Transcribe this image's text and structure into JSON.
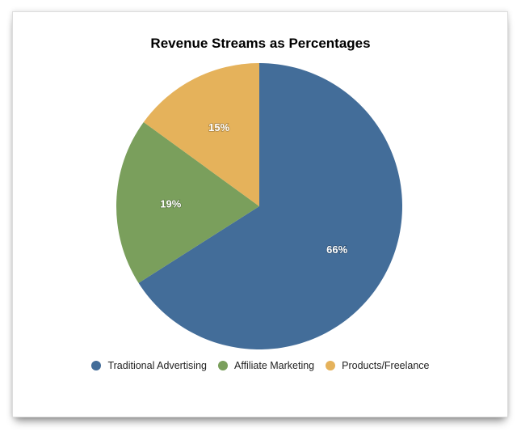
{
  "chart_data": {
    "type": "pie",
    "title": "Revenue Streams as Percentages",
    "categories": [
      "Traditional Advertising",
      "Affiliate Marketing",
      "Products/Freelance"
    ],
    "values": [
      66,
      19,
      15
    ],
    "labels": [
      "66%",
      "19%",
      "15%"
    ],
    "colors": [
      "#436d99",
      "#7a9f5c",
      "#e5b25b"
    ],
    "start": "top, clockwise",
    "legend": "bottom"
  }
}
